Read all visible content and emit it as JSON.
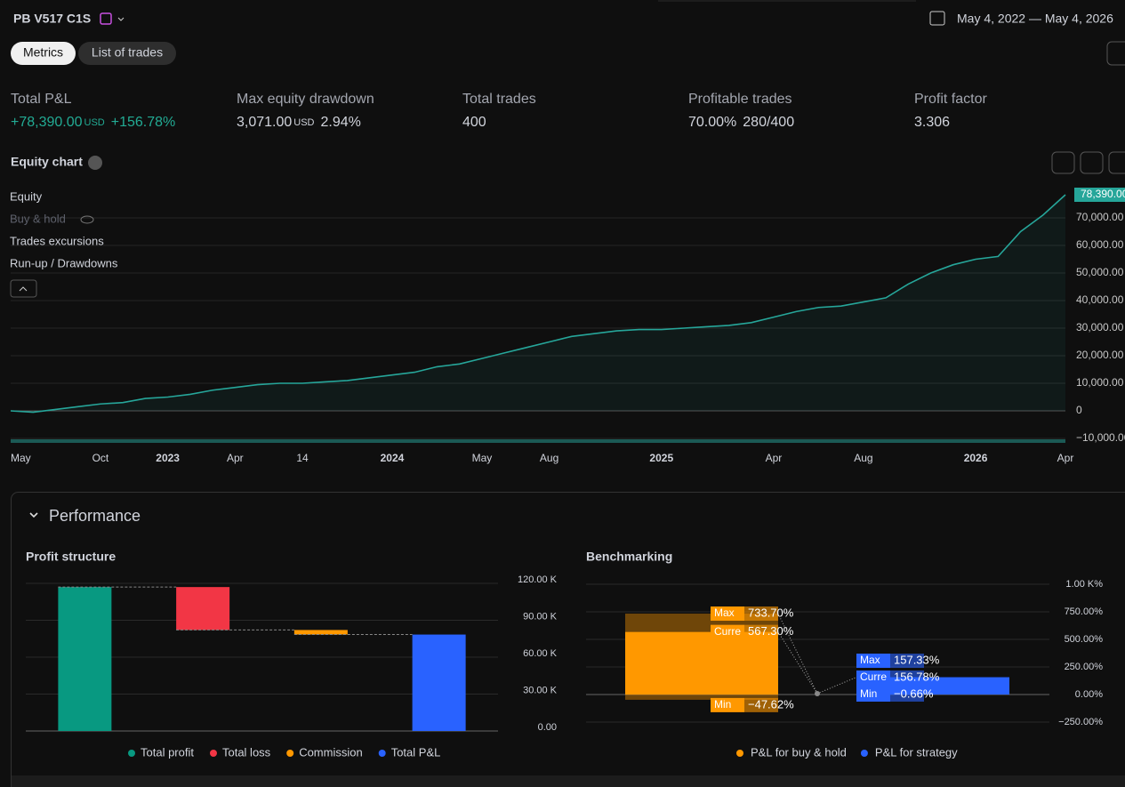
{
  "header": {
    "title": "PB V517 C1S",
    "date_range": "May 4, 2022 — May 4, 2026"
  },
  "tabs": [
    "Metrics",
    "List of trades"
  ],
  "metrics": [
    {
      "label": "Total P&L",
      "value": "+78,390.00",
      "unit": "USD",
      "extra": "+156.78%",
      "color": "#22ab94"
    },
    {
      "label": "Max equity drawdown",
      "value": "3,071.00",
      "unit": "USD",
      "extra": "2.94%"
    },
    {
      "label": "Total trades",
      "value": "400"
    },
    {
      "label": "Profitable trades",
      "value": "70.00%",
      "extra": "280/400"
    },
    {
      "label": "Profit factor",
      "value": "3.306"
    }
  ],
  "performance_title": "Performance",
  "chart_data": [
    {
      "type": "line",
      "title": "Equity chart",
      "legend_toggles": [
        "Buy & hold",
        "Trades excursions",
        "Run-up / Drawdowns"
      ],
      "categories": [
        "May",
        null,
        null,
        null,
        "Oct",
        null,
        null,
        "2023",
        null,
        null,
        "Apr",
        null,
        null,
        "14",
        null,
        null,
        null,
        "2024",
        null,
        null,
        null,
        "May",
        null,
        null,
        "Aug",
        null,
        null,
        null,
        null,
        "2025",
        null,
        null,
        null,
        null,
        "Apr",
        null,
        null,
        null,
        "Aug",
        null,
        null,
        null,
        null,
        "2026",
        null,
        null,
        null,
        "Apr"
      ],
      "series": [
        {
          "name": "Equity",
          "color": "#26a69a",
          "values": [
            0,
            -500,
            500,
            1500,
            2500,
            3000,
            4500,
            5000,
            6000,
            7500,
            8500,
            9500,
            10000,
            10000,
            10500,
            11000,
            12000,
            13000,
            14000,
            16000,
            17000,
            19000,
            21000,
            23000,
            25000,
            27000,
            28000,
            29000,
            29500,
            29500,
            30000,
            30500,
            31000,
            32000,
            34000,
            36000,
            37500,
            38000,
            39500,
            41000,
            46000,
            50000,
            53000,
            55000,
            56000,
            65000,
            71000,
            78390
          ]
        }
      ],
      "last_value_label": "78,390.00",
      "ylim": [
        -10000,
        80000
      ],
      "yticks": [
        {
          "value": -10000,
          "label": "−10,000.00"
        },
        0,
        {
          "value": 10000,
          "label": "10,000.00"
        },
        {
          "value": 20000,
          "label": "20,000.00"
        },
        {
          "value": 30000,
          "label": "30,000.00"
        },
        {
          "value": 40000,
          "label": "40,000.00"
        },
        {
          "value": 50000,
          "label": "50,000.00"
        },
        {
          "value": 60000,
          "label": "60,000.00"
        },
        {
          "value": 70000,
          "label": "70,000.00"
        }
      ],
      "grid": true
    },
    {
      "type": "waterfall",
      "title": "Profit structure",
      "categories": [
        "Total profit",
        "Total loss",
        "Commission",
        "Total P&L"
      ],
      "values": [
        117000,
        -34900,
        -3710,
        78390
      ],
      "colors": [
        "#089981",
        "#f23645",
        "#ff9800",
        "#2962ff"
      ],
      "ylim": [
        0,
        120000
      ],
      "yticks": [
        {
          "value": 0,
          "label": "0.00"
        },
        {
          "value": 30000,
          "label": "30.00 K"
        },
        {
          "value": 60000,
          "label": "60.00 K"
        },
        {
          "value": 90000,
          "label": "90.00 K"
        },
        {
          "value": 120000,
          "label": "120.00 K"
        }
      ],
      "grid": true
    },
    {
      "type": "range_bar",
      "title": "Benchmarking",
      "categories": [
        "Max",
        "Curre",
        "Min"
      ],
      "series": [
        {
          "name": "P&L for buy & hold",
          "color": "#ff9800",
          "values": [
            733.7,
            567.3,
            -47.62
          ],
          "value_labels": [
            "733.70%",
            "567.30%",
            "−47.62%"
          ]
        },
        {
          "name": "P&L for strategy",
          "color": "#2962ff",
          "values": [
            157.33,
            156.78,
            -0.66
          ],
          "value_labels": [
            "157.33%",
            "156.78%",
            "−0.66%"
          ]
        }
      ],
      "ylim": [
        -250,
        1000
      ],
      "yticks": [
        {
          "value": 1000,
          "label": "1.00 K%"
        },
        {
          "value": 750,
          "label": "750.00%"
        },
        {
          "value": 500,
          "label": "500.00%"
        },
        {
          "value": 250,
          "label": "250.00%"
        },
        {
          "value": 0,
          "label": "0.00%"
        },
        {
          "value": -250,
          "label": "−250.00%"
        }
      ],
      "grid": true
    }
  ]
}
